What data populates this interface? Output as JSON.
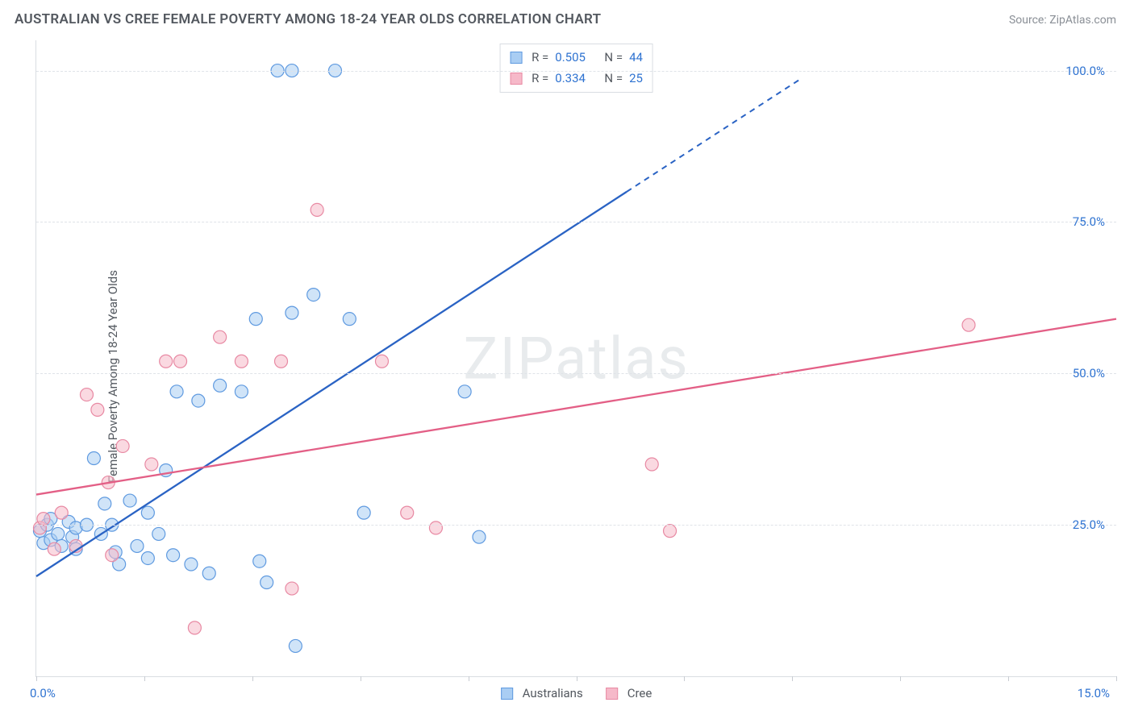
{
  "header": {
    "title": "AUSTRALIAN VS CREE FEMALE POVERTY AMONG 18-24 YEAR OLDS CORRELATION CHART",
    "source_prefix": "Source: ",
    "source_name": "ZipAtlas.com"
  },
  "chart": {
    "type": "scatter",
    "ylabel": "Female Poverty Among 18-24 Year Olds",
    "watermark": "ZIPatlas",
    "xlim": [
      0,
      15
    ],
    "ylim": [
      0,
      105
    ],
    "ytick_values": [
      25,
      50,
      75,
      100
    ],
    "ytick_labels": [
      "25.0%",
      "50.0%",
      "75.0%",
      "100.0%"
    ],
    "xtick_values": [
      0,
      1.5,
      3,
      4.5,
      6,
      7.5,
      9,
      10.5,
      12,
      13.5,
      15
    ],
    "x_axis_label_left": "0.0%",
    "x_axis_label_right": "15.0%",
    "background_color": "#ffffff",
    "grid_color": "#dfe3e8",
    "axis_color": "#d9dde2",
    "tick_label_color": "#2f73d1",
    "text_color": "#53585f",
    "series": [
      {
        "key": "australians",
        "label": "Australians",
        "fill": "#a9cdf3",
        "stroke": "#5f9ae0",
        "line_color": "#2a63c4",
        "fill_opacity": 0.55,
        "marker_radius": 8,
        "R": "0.505",
        "N": "44",
        "trend": {
          "x1": 0,
          "y1": 16.5,
          "x2": 8.2,
          "y2": 80,
          "dash_to_x": 10.6,
          "dash_to_y": 98.5
        },
        "points": [
          [
            0.05,
            24
          ],
          [
            0.1,
            22
          ],
          [
            0.15,
            25
          ],
          [
            0.2,
            22.5
          ],
          [
            0.2,
            26
          ],
          [
            0.3,
            23.5
          ],
          [
            0.35,
            21.5
          ],
          [
            0.45,
            25.5
          ],
          [
            0.5,
            23
          ],
          [
            0.55,
            24.5
          ],
          [
            0.55,
            21
          ],
          [
            0.7,
            25
          ],
          [
            0.8,
            36
          ],
          [
            0.9,
            23.5
          ],
          [
            0.95,
            28.5
          ],
          [
            1.05,
            25
          ],
          [
            1.1,
            20.5
          ],
          [
            1.15,
            18.5
          ],
          [
            1.3,
            29
          ],
          [
            1.4,
            21.5
          ],
          [
            1.55,
            27
          ],
          [
            1.55,
            19.5
          ],
          [
            1.7,
            23.5
          ],
          [
            1.8,
            34
          ],
          [
            1.9,
            20
          ],
          [
            1.95,
            47
          ],
          [
            2.15,
            18.5
          ],
          [
            2.25,
            45.5
          ],
          [
            2.4,
            17
          ],
          [
            2.55,
            48
          ],
          [
            2.85,
            47
          ],
          [
            3.05,
            59
          ],
          [
            3.1,
            19
          ],
          [
            3.2,
            15.5
          ],
          [
            3.35,
            100
          ],
          [
            3.55,
            100
          ],
          [
            3.55,
            60
          ],
          [
            3.6,
            5
          ],
          [
            3.85,
            63
          ],
          [
            4.15,
            100
          ],
          [
            4.35,
            59
          ],
          [
            4.55,
            27
          ],
          [
            5.95,
            47
          ],
          [
            6.15,
            23
          ]
        ]
      },
      {
        "key": "cree",
        "label": "Cree",
        "fill": "#f6b9c9",
        "stroke": "#e889a3",
        "line_color": "#e35f86",
        "fill_opacity": 0.55,
        "marker_radius": 8,
        "R": "0.334",
        "N": "25",
        "trend": {
          "x1": 0,
          "y1": 30,
          "x2": 15,
          "y2": 59,
          "dash_to_x": 15,
          "dash_to_y": 59
        },
        "points": [
          [
            0.05,
            24.5
          ],
          [
            0.1,
            26
          ],
          [
            0.25,
            21
          ],
          [
            0.35,
            27
          ],
          [
            0.55,
            21.5
          ],
          [
            0.7,
            46.5
          ],
          [
            0.85,
            44
          ],
          [
            1.0,
            32
          ],
          [
            1.05,
            20
          ],
          [
            1.2,
            38
          ],
          [
            1.6,
            35
          ],
          [
            1.8,
            52
          ],
          [
            2.0,
            52
          ],
          [
            2.2,
            8
          ],
          [
            2.55,
            56
          ],
          [
            2.85,
            52
          ],
          [
            3.4,
            52
          ],
          [
            3.55,
            14.5
          ],
          [
            3.9,
            77
          ],
          [
            4.8,
            52
          ],
          [
            5.15,
            27
          ],
          [
            5.55,
            24.5
          ],
          [
            8.55,
            35
          ],
          [
            8.8,
            24
          ],
          [
            12.95,
            58
          ]
        ]
      }
    ],
    "legend_top": {
      "R_label": "R =",
      "N_label": "N ="
    }
  }
}
